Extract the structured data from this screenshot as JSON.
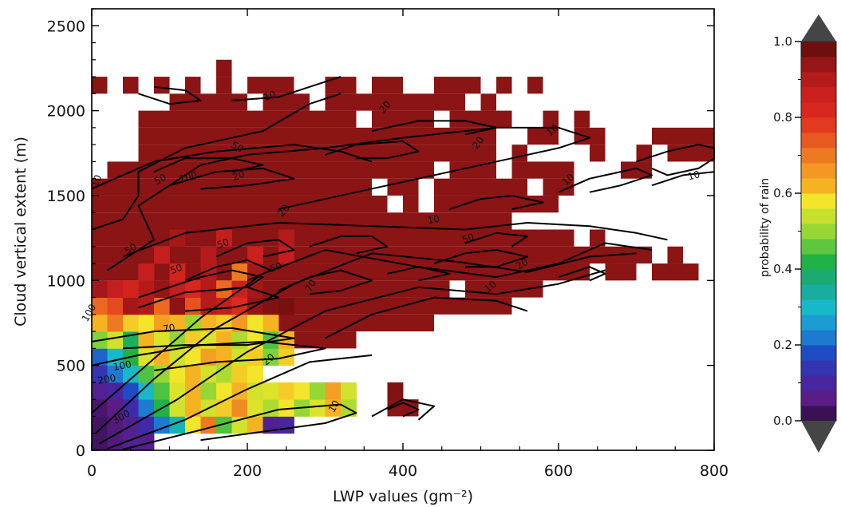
{
  "chart_data": {
    "type": "heatmap",
    "title": "",
    "xlabel": "LWP values (gm⁻²)",
    "ylabel": "Cloud vertical extent (m)",
    "xlim": [
      0,
      800
    ],
    "ylim": [
      0,
      2600
    ],
    "x_ticks": [
      0,
      200,
      400,
      600,
      800
    ],
    "y_ticks": [
      0,
      500,
      1000,
      1500,
      2000,
      2500
    ],
    "x_bin_width": 20,
    "y_bin_width": 100,
    "colorbar": {
      "label": "probability of rain",
      "range": [
        0.0,
        1.0
      ],
      "ticks": [
        "0.0",
        "0.2",
        "0.4",
        "0.6",
        "0.8",
        "1.0"
      ],
      "extend": "both",
      "extend_color": "#454545"
    },
    "cells": [
      [
        0,
        0,
        0.03
      ],
      [
        20,
        0,
        0.05
      ],
      [
        40,
        0,
        0.08
      ],
      [
        60,
        0,
        0.07
      ],
      [
        0,
        100,
        0.03
      ],
      [
        20,
        100,
        0.05
      ],
      [
        40,
        100,
        0.08
      ],
      [
        60,
        100,
        0.12
      ],
      [
        80,
        100,
        0.22
      ],
      [
        100,
        100,
        0.32
      ],
      [
        120,
        100,
        0.58
      ],
      [
        140,
        100,
        0.7
      ],
      [
        160,
        100,
        0.45
      ],
      [
        180,
        100,
        0.55
      ],
      [
        200,
        100,
        0.62
      ],
      [
        220,
        100,
        0.08
      ],
      [
        240,
        100,
        0.1
      ],
      [
        0,
        200,
        0.04
      ],
      [
        20,
        200,
        0.06
      ],
      [
        40,
        200,
        0.12
      ],
      [
        60,
        200,
        0.22
      ],
      [
        80,
        200,
        0.42
      ],
      [
        100,
        200,
        0.55
      ],
      [
        120,
        200,
        0.62
      ],
      [
        140,
        200,
        0.55
      ],
      [
        160,
        200,
        0.6
      ],
      [
        180,
        200,
        0.68
      ],
      [
        200,
        200,
        0.56
      ],
      [
        220,
        200,
        0.52
      ],
      [
        240,
        200,
        0.58
      ],
      [
        260,
        200,
        0.5
      ],
      [
        280,
        200,
        0.56
      ],
      [
        300,
        200,
        0.62
      ],
      [
        320,
        200,
        0.52
      ],
      [
        0,
        300,
        0.08
      ],
      [
        20,
        300,
        0.1
      ],
      [
        40,
        300,
        0.18
      ],
      [
        60,
        300,
        0.3
      ],
      [
        80,
        300,
        0.45
      ],
      [
        100,
        300,
        0.56
      ],
      [
        120,
        300,
        0.62
      ],
      [
        140,
        300,
        0.5
      ],
      [
        160,
        300,
        0.58
      ],
      [
        180,
        300,
        0.62
      ],
      [
        200,
        300,
        0.55
      ],
      [
        220,
        300,
        0.56
      ],
      [
        240,
        300,
        0.6
      ],
      [
        260,
        300,
        0.58
      ],
      [
        280,
        300,
        0.5
      ],
      [
        300,
        300,
        0.65
      ],
      [
        320,
        300,
        0.55
      ],
      [
        380,
        300,
        0.96
      ],
      [
        0,
        400,
        0.14
      ],
      [
        20,
        400,
        0.22
      ],
      [
        40,
        400,
        0.3
      ],
      [
        60,
        400,
        0.45
      ],
      [
        80,
        400,
        0.5
      ],
      [
        100,
        400,
        0.58
      ],
      [
        120,
        400,
        0.62
      ],
      [
        140,
        400,
        0.55
      ],
      [
        160,
        400,
        0.52
      ],
      [
        180,
        400,
        0.6
      ],
      [
        200,
        400,
        0.58
      ],
      [
        0,
        500,
        0.2
      ],
      [
        20,
        500,
        0.3
      ],
      [
        40,
        500,
        0.42
      ],
      [
        60,
        500,
        0.56
      ],
      [
        80,
        500,
        0.62
      ],
      [
        100,
        500,
        0.55
      ],
      [
        120,
        500,
        0.58
      ],
      [
        140,
        500,
        0.65
      ],
      [
        160,
        500,
        0.62
      ],
      [
        180,
        500,
        0.55
      ],
      [
        200,
        500,
        0.6
      ],
      [
        220,
        500,
        0.48
      ],
      [
        240,
        500,
        0.6
      ],
      [
        0,
        600,
        0.48
      ],
      [
        20,
        600,
        0.55
      ],
      [
        40,
        600,
        0.4
      ],
      [
        60,
        600,
        0.62
      ],
      [
        80,
        600,
        0.56
      ],
      [
        100,
        600,
        0.5
      ],
      [
        120,
        600,
        0.6
      ],
      [
        140,
        600,
        0.56
      ],
      [
        160,
        600,
        0.62
      ],
      [
        180,
        600,
        0.52
      ],
      [
        200,
        600,
        0.58
      ],
      [
        220,
        600,
        0.45
      ],
      [
        240,
        600,
        0.62
      ],
      [
        0,
        700,
        0.62
      ],
      [
        20,
        700,
        0.7
      ],
      [
        40,
        700,
        0.6
      ],
      [
        60,
        700,
        0.58
      ],
      [
        80,
        700,
        0.65
      ],
      [
        100,
        700,
        0.62
      ],
      [
        120,
        700,
        0.5
      ],
      [
        140,
        700,
        0.62
      ],
      [
        160,
        700,
        0.6
      ],
      [
        180,
        700,
        0.66
      ],
      [
        200,
        700,
        0.58
      ],
      [
        220,
        700,
        0.62
      ],
      [
        0,
        800,
        0.72
      ],
      [
        20,
        800,
        0.76
      ],
      [
        40,
        800,
        0.92
      ],
      [
        60,
        800,
        0.9
      ],
      [
        80,
        800,
        0.72
      ],
      [
        100,
        800,
        0.95
      ],
      [
        120,
        800,
        0.75
      ],
      [
        140,
        800,
        0.9
      ],
      [
        160,
        800,
        0.88
      ],
      [
        180,
        800,
        0.8
      ],
      [
        200,
        800,
        0.94
      ],
      [
        220,
        800,
        0.96
      ],
      [
        240,
        800,
        0.97
      ],
      [
        0,
        900,
        0.92
      ],
      [
        20,
        900,
        0.88
      ],
      [
        40,
        900,
        0.84
      ],
      [
        60,
        900,
        0.9
      ],
      [
        80,
        900,
        0.94
      ],
      [
        100,
        900,
        0.88
      ],
      [
        120,
        900,
        0.82
      ],
      [
        140,
        900,
        0.9
      ],
      [
        160,
        900,
        0.72
      ],
      [
        180,
        900,
        0.86
      ],
      [
        200,
        900,
        0.92
      ],
      [
        60,
        1000,
        0.88
      ],
      [
        100,
        1000,
        0.84
      ],
      [
        140,
        1000,
        0.9
      ],
      [
        180,
        1000,
        0.7
      ],
      [
        200,
        1000,
        0.92
      ],
      [
        80,
        1100,
        0.88
      ],
      [
        140,
        1100,
        0.9
      ],
      [
        200,
        1100,
        0.86
      ],
      [
        240,
        1100,
        0.88
      ],
      [
        100,
        1200,
        0.92
      ],
      [
        160,
        1200,
        0.88
      ],
      [
        240,
        1200,
        0.9
      ]
    ],
    "high_probability_region": {
      "value": 0.97,
      "rows": [
        {
          "y": 0,
          "x": []
        },
        {
          "y": 100,
          "x": [
            [
              80,
              120
            ]
          ]
        },
        {
          "y": 200,
          "x": [
            [
              380,
              420
            ]
          ]
        },
        {
          "y": 300,
          "x": []
        },
        {
          "y": 400,
          "x": []
        },
        {
          "y": 500,
          "x": []
        },
        {
          "y": 600,
          "x": [
            [
              260,
              340
            ]
          ]
        },
        {
          "y": 700,
          "x": [
            [
              240,
              440
            ]
          ]
        },
        {
          "y": 800,
          "x": [
            [
              260,
              540
            ]
          ]
        },
        {
          "y": 900,
          "x": [
            [
              0,
              460
            ],
            [
              480,
              580
            ]
          ]
        },
        {
          "y": 1000,
          "x": [
            [
              0,
              640
            ],
            [
              660,
              700
            ],
            [
              720,
              780
            ]
          ]
        },
        {
          "y": 1100,
          "x": [
            [
              0,
              720
            ],
            [
              740,
              760
            ]
          ]
        },
        {
          "y": 1200,
          "x": [
            [
              0,
              620
            ],
            [
              640,
              660
            ]
          ]
        },
        {
          "y": 1300,
          "x": [
            [
              0,
              540
            ]
          ]
        },
        {
          "y": 1400,
          "x": [
            [
              0,
              380
            ],
            [
              400,
              420
            ],
            [
              440,
              600
            ]
          ]
        },
        {
          "y": 1500,
          "x": [
            [
              0,
              360
            ],
            [
              380,
              420
            ],
            [
              440,
              560
            ],
            [
              580,
              620
            ]
          ]
        },
        {
          "y": 1600,
          "x": [
            [
              20,
              440
            ],
            [
              460,
              520
            ],
            [
              540,
              620
            ],
            [
              680,
              720
            ]
          ]
        },
        {
          "y": 1700,
          "x": [
            [
              60,
              520
            ],
            [
              540,
              560
            ],
            [
              640,
              660
            ],
            [
              700,
              720
            ],
            [
              740,
              800
            ]
          ]
        },
        {
          "y": 1800,
          "x": [
            [
              60,
              520
            ],
            [
              560,
              600
            ],
            [
              620,
              660
            ],
            [
              720,
              800
            ]
          ]
        },
        {
          "y": 1900,
          "x": [
            [
              60,
              340
            ],
            [
              360,
              440
            ],
            [
              460,
              540
            ],
            [
              580,
              600
            ],
            [
              620,
              640
            ]
          ]
        },
        {
          "y": 2000,
          "x": [
            [
              100,
              200
            ],
            [
              220,
              280
            ],
            [
              300,
              480
            ],
            [
              500,
              520
            ]
          ]
        },
        {
          "y": 2100,
          "x": [
            [
              0,
              20
            ],
            [
              40,
              60
            ],
            [
              80,
              100
            ],
            [
              120,
              140
            ],
            [
              160,
              180
            ],
            [
              200,
              260
            ],
            [
              300,
              340
            ],
            [
              360,
              400
            ],
            [
              440,
              500
            ],
            [
              520,
              540
            ],
            [
              560,
              580
            ]
          ]
        },
        {
          "y": 2200,
          "x": [
            [
              160,
              180
            ]
          ]
        }
      ]
    },
    "contour_values": [
      "10",
      "20",
      "50",
      "70",
      "100",
      "200",
      "300"
    ],
    "contour_labels": [
      {
        "text": "10",
        "x": 230,
        "y": 2070,
        "angle": -20
      },
      {
        "text": "20",
        "x": 380,
        "y": 2010,
        "angle": -50
      },
      {
        "text": "20",
        "x": 500,
        "y": 1800,
        "angle": -55
      },
      {
        "text": "10",
        "x": 595,
        "y": 1870,
        "angle": -40
      },
      {
        "text": "50",
        "x": 185,
        "y": 1770,
        "angle": 30
      },
      {
        "text": "10",
        "x": 10,
        "y": 1580,
        "angle": -70
      },
      {
        "text": "50",
        "x": 90,
        "y": 1580,
        "angle": -30
      },
      {
        "text": "100",
        "x": 125,
        "y": 1590,
        "angle": -15
      },
      {
        "text": "20",
        "x": 190,
        "y": 1600,
        "angle": -20
      },
      {
        "text": "20",
        "x": 250,
        "y": 1400,
        "angle": -50
      },
      {
        "text": "10",
        "x": 615,
        "y": 1580,
        "angle": -40
      },
      {
        "text": "10",
        "x": 775,
        "y": 1600,
        "angle": -15
      },
      {
        "text": "10",
        "x": 440,
        "y": 1340,
        "angle": -10
      },
      {
        "text": "50",
        "x": 485,
        "y": 1230,
        "angle": -20
      },
      {
        "text": "50",
        "x": 52,
        "y": 1170,
        "angle": -30
      },
      {
        "text": "50",
        "x": 110,
        "y": 1050,
        "angle": -20
      },
      {
        "text": "50",
        "x": 170,
        "y": 1200,
        "angle": -20
      },
      {
        "text": "50",
        "x": 238,
        "y": 1060,
        "angle": -20
      },
      {
        "text": "20",
        "x": 555,
        "y": 1080,
        "angle": -30
      },
      {
        "text": "10",
        "x": 515,
        "y": 950,
        "angle": -40
      },
      {
        "text": "70",
        "x": 285,
        "y": 960,
        "angle": -60
      },
      {
        "text": "70",
        "x": 100,
        "y": 700,
        "angle": -10
      },
      {
        "text": "100",
        "x": 0,
        "y": 800,
        "angle": -60
      },
      {
        "text": "100",
        "x": 40,
        "y": 480,
        "angle": -10
      },
      {
        "text": "200",
        "x": 20,
        "y": 400,
        "angle": -10
      },
      {
        "text": "20",
        "x": 230,
        "y": 520,
        "angle": -40
      },
      {
        "text": "300",
        "x": 40,
        "y": 180,
        "angle": -30
      },
      {
        "text": "10",
        "x": 315,
        "y": 250,
        "angle": -60
      }
    ]
  }
}
